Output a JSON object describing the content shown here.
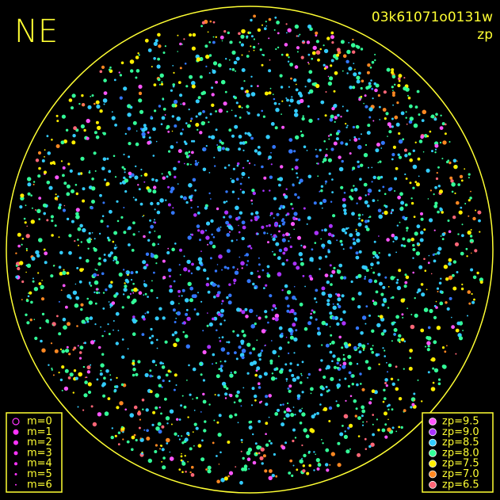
{
  "corner_label": "NE",
  "header": {
    "title": "03k61071o0131w",
    "subtitle": "zp"
  },
  "legend_m": {
    "items": [
      "m=0",
      "m=1",
      "m=2",
      "m=3",
      "m=4",
      "m=5",
      "m=6"
    ],
    "color": "#ff33ff"
  },
  "legend_zp": {
    "items": [
      {
        "label": "zp=9.5",
        "color": "#ff55ff"
      },
      {
        "label": "zp=9.0",
        "color": "#aa33ff"
      },
      {
        "label": "zp=8.5",
        "color": "#33ccff"
      },
      {
        "label": "zp=8.0",
        "color": "#33ff99"
      },
      {
        "label": "zp=7.5",
        "color": "#ffee00"
      },
      {
        "label": "zp=7.0",
        "color": "#ff8822"
      },
      {
        "label": "zp=6.5",
        "color": "#ff6677"
      }
    ]
  }
}
